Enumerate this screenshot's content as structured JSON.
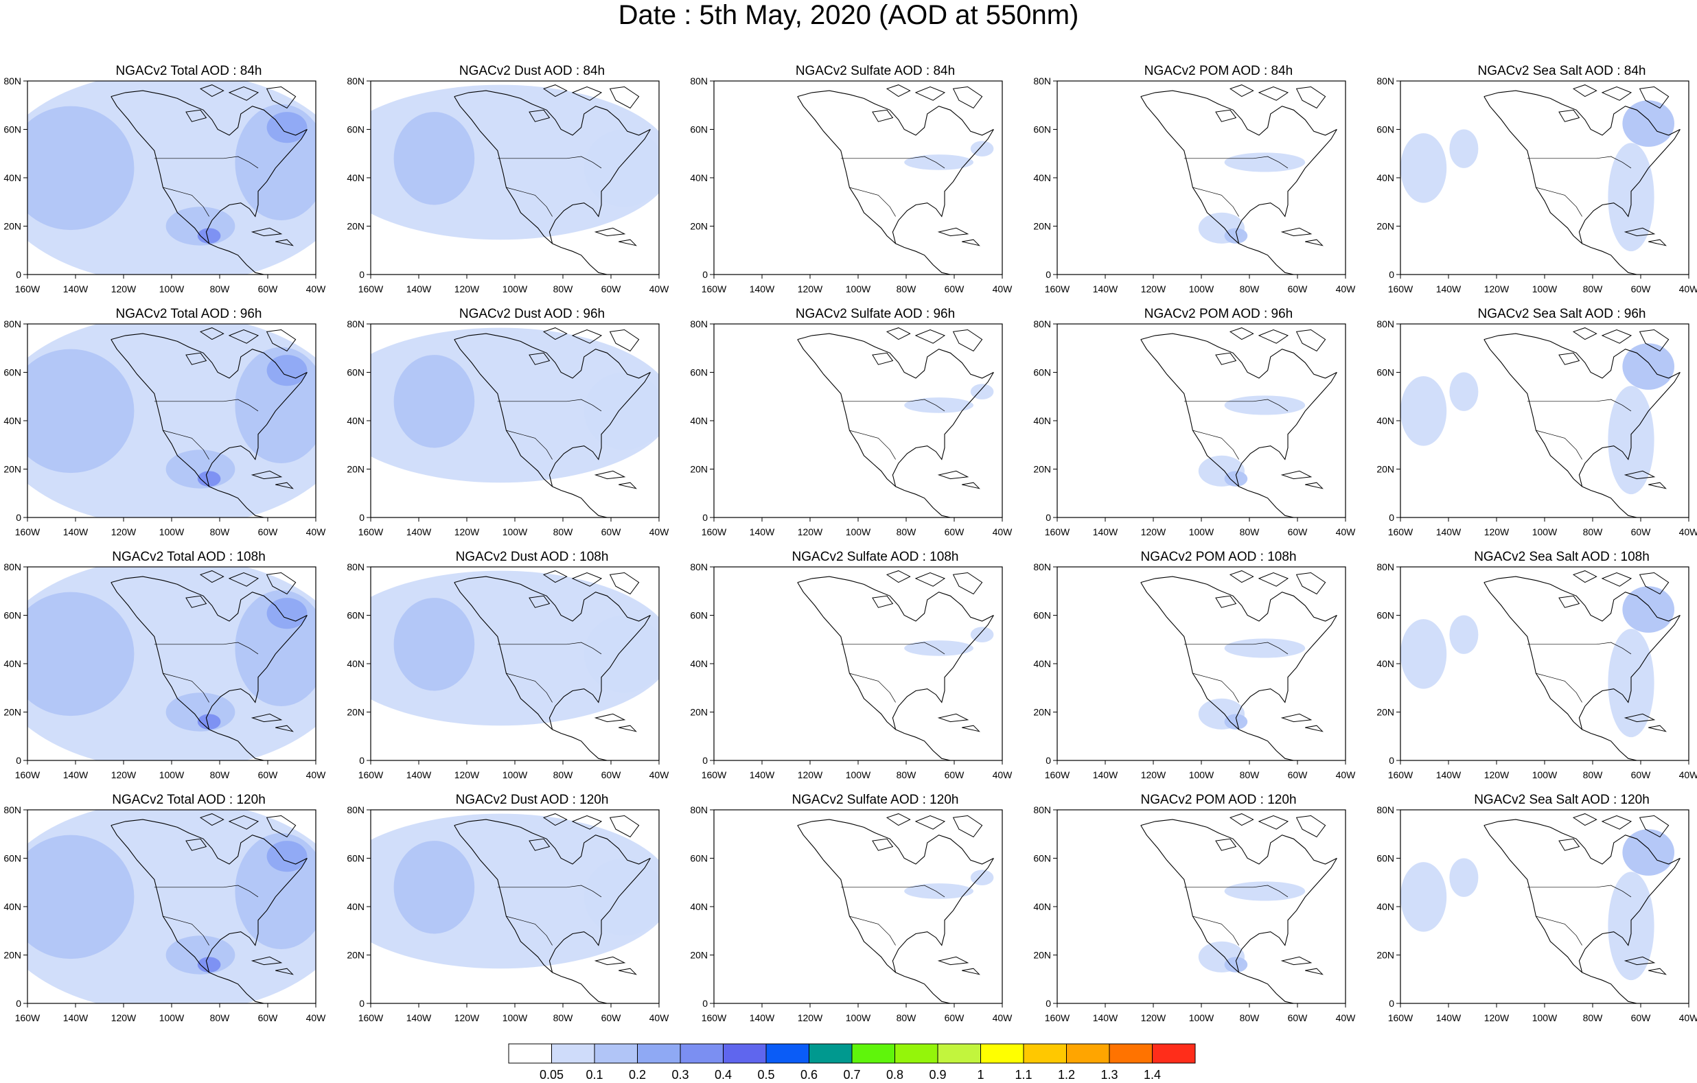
{
  "title": "Date : 5th May, 2020 (AOD at 550nm)",
  "axes": {
    "x_ticks": [
      "160W",
      "140W",
      "120W",
      "100W",
      "80W",
      "60W",
      "40W"
    ],
    "y_ticks": [
      "0",
      "20N",
      "40N",
      "60N",
      "80N"
    ],
    "xlim": [
      -160,
      -40
    ],
    "ylim": [
      0,
      80
    ]
  },
  "columns": [
    {
      "species": "total",
      "color_hint": "#c9d6fa"
    },
    {
      "species": "dust",
      "color_hint": "#c9d6fa"
    },
    {
      "species": "sulfate",
      "color_hint": "#ffffff"
    },
    {
      "species": "pom",
      "color_hint": "#ffffff"
    },
    {
      "species": "seasalt",
      "color_hint": "#ffffff"
    }
  ],
  "panels": [
    {
      "title": "NGACv2 Total AOD : 84h",
      "species": "total",
      "forecast_hour": 84
    },
    {
      "title": "NGACv2 Dust AOD : 84h",
      "species": "dust",
      "forecast_hour": 84
    },
    {
      "title": "NGACv2 Sulfate AOD : 84h",
      "species": "sulfate",
      "forecast_hour": 84
    },
    {
      "title": "NGACv2 POM AOD : 84h",
      "species": "pom",
      "forecast_hour": 84
    },
    {
      "title": "NGACv2 Sea Salt AOD : 84h",
      "species": "seasalt",
      "forecast_hour": 84
    },
    {
      "title": "NGACv2 Total AOD : 96h",
      "species": "total",
      "forecast_hour": 96
    },
    {
      "title": "NGACv2 Dust AOD : 96h",
      "species": "dust",
      "forecast_hour": 96
    },
    {
      "title": "NGACv2 Sulfate AOD : 96h",
      "species": "sulfate",
      "forecast_hour": 96
    },
    {
      "title": "NGACv2 POM AOD : 96h",
      "species": "pom",
      "forecast_hour": 96
    },
    {
      "title": "NGACv2 Sea Salt AOD : 96h",
      "species": "seasalt",
      "forecast_hour": 96
    },
    {
      "title": "NGACv2 Total AOD : 108h",
      "species": "total",
      "forecast_hour": 108
    },
    {
      "title": "NGACv2 Dust AOD : 108h",
      "species": "dust",
      "forecast_hour": 108
    },
    {
      "title": "NGACv2 Sulfate AOD : 108h",
      "species": "sulfate",
      "forecast_hour": 108
    },
    {
      "title": "NGACv2 POM AOD : 108h",
      "species": "pom",
      "forecast_hour": 108
    },
    {
      "title": "NGACv2 Sea Salt AOD : 108h",
      "species": "seasalt",
      "forecast_hour": 108
    },
    {
      "title": "NGACv2 Total AOD : 120h",
      "species": "total",
      "forecast_hour": 120
    },
    {
      "title": "NGACv2 Dust AOD : 120h",
      "species": "dust",
      "forecast_hour": 120
    },
    {
      "title": "NGACv2 Sulfate AOD : 120h",
      "species": "sulfate",
      "forecast_hour": 120
    },
    {
      "title": "NGACv2 POM AOD : 120h",
      "species": "pom",
      "forecast_hour": 120
    },
    {
      "title": "NGACv2 Sea Salt  AOD : 120h",
      "species": "seasalt",
      "forecast_hour": 120
    }
  ],
  "colorbar": {
    "colors": [
      "#ffffff",
      "#cfdcfa",
      "#b1c5f7",
      "#8fa9f4",
      "#7b8ff2",
      "#5f66ee",
      "#0a5cf7",
      "#00998f",
      "#5ff50b",
      "#94f50a",
      "#c2f53d",
      "#ffff00",
      "#ffc800",
      "#ffa500",
      "#ff7300",
      "#ff2d1a"
    ],
    "labels": [
      "0.05",
      "0.1",
      "0.2",
      "0.3",
      "0.4",
      "0.5",
      "0.6",
      "0.7",
      "0.8",
      "0.9",
      "1",
      "1.1",
      "1.2",
      "1.3",
      "1.4"
    ]
  },
  "colors": {
    "land_outline": "#000000",
    "low_aod": "#cfdcfa",
    "mid_aod": "#b1c5f7",
    "high_aod": "#8fa9f4",
    "peak_aod": "#7b8ff2"
  }
}
